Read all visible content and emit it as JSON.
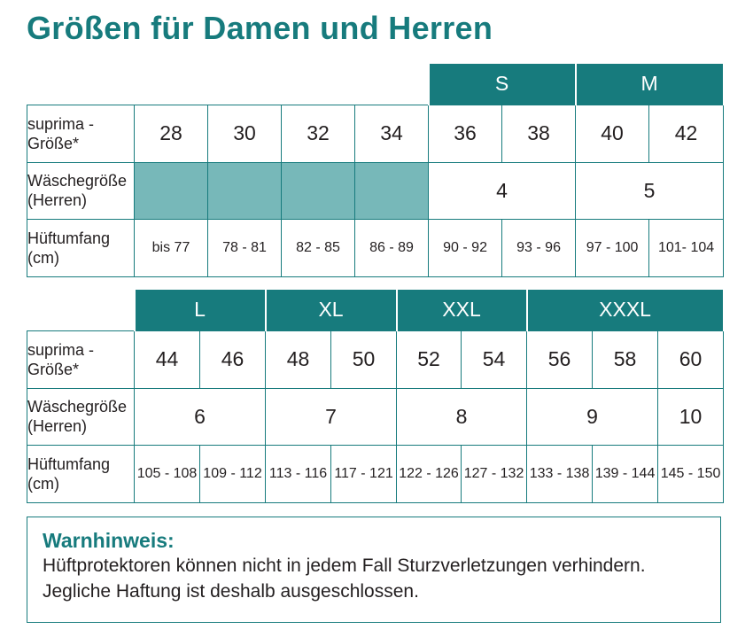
{
  "title": "Größen für Damen und Herren",
  "table1": {
    "headers": [
      "S",
      "M"
    ],
    "suprima_label": "suprima - Größe*",
    "suprima": [
      "28",
      "30",
      "32",
      "34",
      "36",
      "38",
      "40",
      "42"
    ],
    "waesche_label": "Wäschegröße (Herren)",
    "waesche": [
      "4",
      "5"
    ],
    "hueft_label": "Hüftumfang (cm)",
    "hueft": [
      "bis 77",
      "78 - 81",
      "82 - 85",
      "86 - 89",
      "90 - 92",
      "93 - 96",
      "97 - 100",
      "101- 104"
    ]
  },
  "table2": {
    "headers": [
      "L",
      "XL",
      "XXL",
      "XXXL"
    ],
    "suprima_label": "suprima - Größe*",
    "suprima": [
      "44",
      "46",
      "48",
      "50",
      "52",
      "54",
      "56",
      "58",
      "60"
    ],
    "waesche_label": "Wäschegröße (Herren)",
    "waesche": [
      "6",
      "7",
      "8",
      "9",
      "10"
    ],
    "hueft_label": "Hüftumfang (cm)",
    "hueft": [
      "105 - 108",
      "109 - 112",
      "113 - 116",
      "117 - 121",
      "122 - 126",
      "127 - 132",
      "133 - 138",
      "139 - 144",
      "145 - 150"
    ]
  },
  "warning": {
    "title": "Warnhinweis:",
    "line1": "Hüftprotektoren können nicht in jedem Fall Sturzverletzungen verhindern.",
    "line2": "Jegliche Haftung ist deshalb ausgeschlossen."
  },
  "colors": {
    "teal": "#177b7d",
    "teal_light": "#77b8b9",
    "text": "#231f20"
  }
}
